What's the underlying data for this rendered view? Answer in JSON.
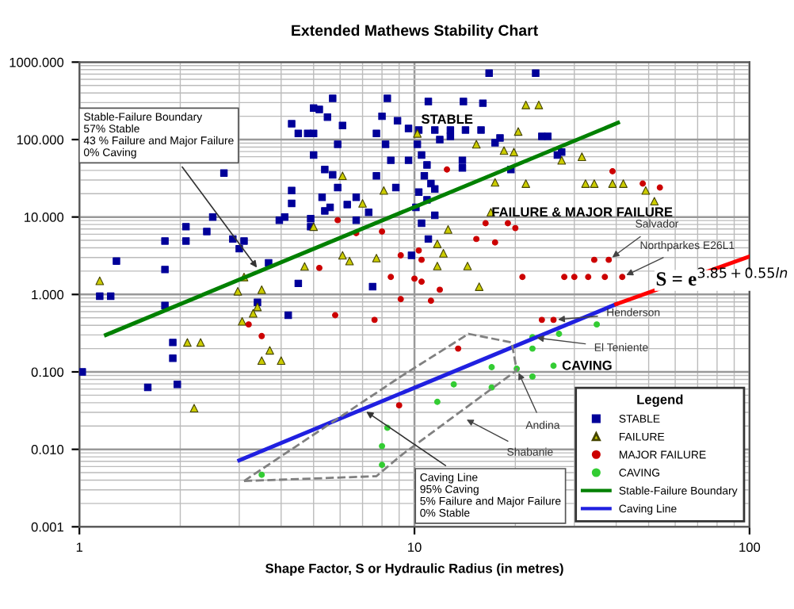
{
  "chart_data": {
    "type": "scatter",
    "title": "Extended Mathews Stability Chart",
    "xlabel": "Shape Factor, S or Hydraulic Radius (in metres)",
    "log": "xy",
    "xlim": [
      1,
      100
    ],
    "ylim": [
      0.001,
      1000
    ],
    "xticks": [
      1,
      10,
      100
    ],
    "yticks": [
      {
        "value": 0.001,
        "label": "0.001"
      },
      {
        "value": 0.01,
        "label": "0.010"
      },
      {
        "value": 0.1,
        "label": "0.100"
      },
      {
        "value": 1,
        "label": "1.000"
      },
      {
        "value": 10,
        "label": "10.000"
      },
      {
        "value": 100,
        "label": "100.000"
      },
      {
        "value": 1000,
        "label": "1000.000"
      }
    ],
    "grid": true,
    "legend": "bottom right",
    "legend_title": "Legend",
    "series": [
      {
        "name": "STABLE",
        "marker": "square",
        "color": "#000099",
        "x": [
          1.15,
          1.24,
          1.29,
          1.8,
          1.8,
          2.08,
          2.08,
          2.4,
          2.5,
          2.7,
          2.87,
          3.0,
          3.1,
          3.67,
          3.95,
          4.1,
          4.5,
          4.3,
          4.3,
          4.5,
          4.8,
          5.0,
          4.3,
          5.0,
          5.2,
          5.7,
          5.5,
          6.1,
          5.9,
          5.0,
          5.4,
          5.7,
          5.9,
          6.3,
          6.7,
          7.3,
          7.7,
          7.5,
          8.3,
          8.0,
          7.7,
          8.2,
          8.5,
          8.8,
          8.9,
          4.9,
          4.9,
          5.4,
          5.6,
          6.7,
          5.3,
          16.7,
          23,
          11,
          14,
          16,
          10.3,
          11.5,
          12.8,
          14.2,
          15.8,
          24,
          25,
          18,
          17.4,
          26.7,
          27.5,
          19.4,
          13.9,
          13.9,
          12.8,
          11.9,
          10.2,
          10.5,
          10.9,
          10.7,
          11.2,
          10.3,
          10.9,
          10.1,
          11.5,
          10.5,
          11.0,
          9.8,
          9.6,
          9.6,
          11.5,
          1.8,
          1.9,
          1.9,
          1.96,
          1.6,
          1.02,
          3.4,
          4.2
        ],
        "values": [
          0.95,
          0.95,
          2.7,
          4.9,
          2.1,
          7.5,
          4.9,
          6.5,
          10,
          37,
          5.2,
          3.9,
          4.9,
          2.56,
          9.1,
          10,
          1.39,
          22,
          15,
          120,
          120,
          120,
          160,
          255,
          245,
          340,
          195,
          152,
          87,
          63,
          41,
          35,
          24,
          14.5,
          18,
          11.5,
          34,
          1.26,
          340,
          200,
          120,
          87,
          54,
          24,
          175,
          9.5,
          7.5,
          12,
          13.3,
          9.1,
          18,
          720,
          720,
          310,
          310,
          295,
          133,
          133,
          133,
          133,
          133,
          110,
          110,
          105,
          91,
          63,
          69,
          41,
          54,
          43,
          110,
          100,
          87,
          63,
          47,
          34,
          27,
          21,
          16.7,
          13.3,
          10.5,
          8.3,
          5.2,
          3.2,
          139,
          54,
          23,
          0.72,
          0.24,
          0.15,
          0.069,
          0.063,
          0.1,
          0.79,
          0.54
        ]
      },
      {
        "name": "FAILURE",
        "marker": "triangle",
        "color": "#cccc00",
        "x": [
          1.15,
          3.1,
          2.97,
          3.5,
          4.7,
          5.0,
          6.1,
          6.4,
          7.0,
          7.7,
          8.1,
          6.1,
          21.5,
          23.5,
          20.4,
          15.3,
          18.5,
          19.8,
          27.5,
          31.6,
          21.5,
          17.4,
          32.4,
          34.4,
          39,
          42,
          49,
          52,
          16.9,
          12.6,
          11.7,
          12.2,
          14.4,
          11.7,
          15.6,
          10.2,
          3.06,
          3.3,
          3.4,
          3.7,
          3.5,
          4.0,
          2.1,
          2.3,
          2.2
        ],
        "values": [
          1.5,
          1.68,
          1.1,
          1.15,
          2.3,
          7.5,
          3.2,
          2.7,
          15,
          2.95,
          22,
          34,
          280,
          280,
          127,
          87,
          72,
          69,
          54,
          60,
          27,
          28,
          27,
          27,
          27,
          27,
          22,
          16,
          11.5,
          6.9,
          4.5,
          3.4,
          2.33,
          2.33,
          1.26,
          120,
          0.45,
          0.57,
          0.69,
          0.19,
          0.14,
          0.14,
          0.24,
          0.24,
          0.034
        ]
      },
      {
        "name": "MAJOR FAILURE",
        "marker": "circle",
        "color": "#cc0000",
        "x": [
          5.9,
          5.2,
          6.7,
          8.0,
          8.5,
          9.1,
          9.1,
          12.5,
          39,
          48,
          54,
          16.3,
          19,
          20,
          15.3,
          17.4,
          10.3,
          10.5,
          34.4,
          38,
          21,
          28,
          30,
          33,
          37,
          41.7,
          10,
          10.5,
          11.9,
          11.2,
          3.2,
          3.5,
          5.8,
          7.6,
          9.0,
          13.5,
          24,
          26
        ],
        "values": [
          9.1,
          2.2,
          6.2,
          6.5,
          1.68,
          3.2,
          0.87,
          41,
          39,
          27,
          24,
          8.3,
          8.3,
          7.2,
          5.2,
          4.7,
          3.7,
          2.8,
          2.8,
          2.8,
          1.68,
          1.68,
          1.68,
          1.68,
          1.68,
          1.68,
          1.6,
          1.46,
          1.15,
          0.83,
          0.41,
          0.29,
          0.54,
          0.47,
          0.037,
          0.2,
          0.47,
          0.47
        ]
      },
      {
        "name": "CAVING",
        "marker": "circle",
        "color": "#33cc33",
        "x": [
          3.5,
          8.3,
          8.0,
          8.0,
          11.7,
          13.1,
          17.0,
          17.0,
          20.2,
          22.5,
          22.5,
          27,
          26,
          22.5,
          35
        ],
        "values": [
          0.0047,
          0.019,
          0.011,
          0.0063,
          0.041,
          0.069,
          0.063,
          0.115,
          0.11,
          0.28,
          0.2,
          0.31,
          0.12,
          0.087,
          0.41
        ]
      },
      {
        "name": "Stable-Failure Boundary",
        "type": "line",
        "color": "#008000",
        "x": [
          1.2,
          40.5
        ],
        "values": [
          0.3,
          165
        ]
      },
      {
        "name": "Caving Line",
        "type": "line",
        "color": "#2020e0",
        "x": [
          3.0,
          40
        ],
        "values": [
          0.0072,
          0.75
        ]
      },
      {
        "type": "line",
        "color": "#ff0000",
        "x": [
          40,
          100
        ],
        "values": [
          0.75,
          3.1
        ]
      },
      {
        "type": "line",
        "color": "#808080",
        "line_style": "dashed",
        "x": [
          3.1,
          7.7,
          9.1,
          20.2
        ],
        "values": [
          0.0039,
          0.0045,
          0.0083,
          0.105
        ]
      },
      {
        "type": "line",
        "color": "#808080",
        "line_style": "dashed",
        "x": [
          3.1,
          9.1,
          14.5,
          19.5,
          20.2
        ],
        "values": [
          0.0039,
          0.087,
          0.31,
          0.24,
          0.105
        ]
      }
    ],
    "annotations": [
      "STABLE",
      "FAILURE & MAJOR FAILURE",
      "CAVING",
      "S = e$^{3.85+0.55ln}$",
      {
        "text": "Stable-Failure Boundary\n57% Stable\n43 % Failure and Major Failure\n0% Caving",
        "x": 3.45,
        "y": 2.0
      },
      {
        "text": "Caving Line\n95% Caving\n5% Failure and Major Failure\n0% Stable",
        "x": 7.0,
        "y": 0.033
      },
      {
        "text": "Salvador",
        "x": 38,
        "y": 2.8
      },
      {
        "text": "Northparkes E26L1",
        "x": 41.7,
        "y": 1.68
      },
      {
        "text": "Henderson",
        "x": 26,
        "y": 0.47
      },
      {
        "text": "El Teniente",
        "x": 22.5,
        "y": 0.28
      },
      {
        "text": "Andina",
        "x": 20.2,
        "y": 0.11
      },
      "Shabanie"
    ]
  }
}
